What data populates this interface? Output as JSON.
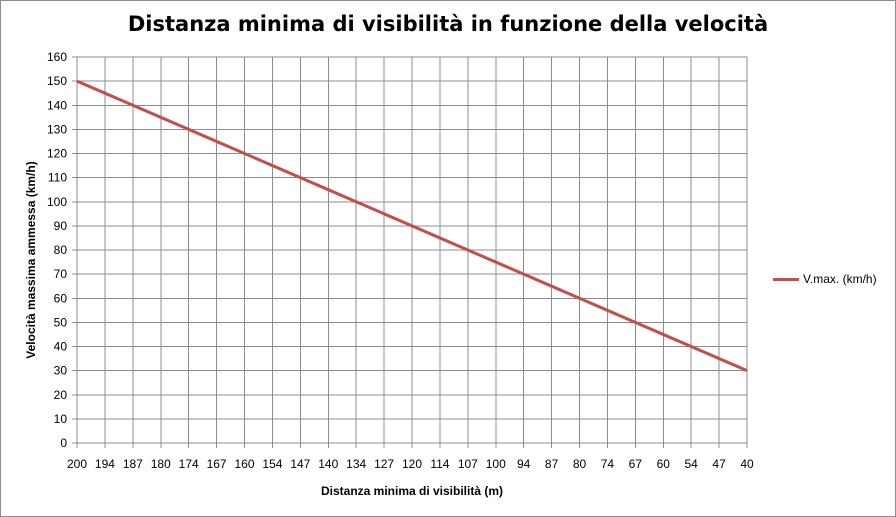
{
  "chart_data": {
    "type": "line",
    "title": "Distanza minima di visibilità in funzione della velocità",
    "xlabel": "Distanza minima di visibilità (m)",
    "ylabel": "Velocità massima ammessa (km/h)",
    "categories": [
      "200",
      "194",
      "187",
      "180",
      "174",
      "167",
      "160",
      "154",
      "147",
      "140",
      "134",
      "127",
      "120",
      "114",
      "107",
      "100",
      "94",
      "87",
      "80",
      "74",
      "67",
      "60",
      "54",
      "47",
      "40"
    ],
    "series": [
      {
        "name": "V.max. (km/h)",
        "color": "#C0504D",
        "values": [
          150,
          145,
          140,
          135,
          130,
          125,
          120,
          115,
          110,
          105,
          100,
          95,
          90,
          85,
          80,
          75,
          70,
          65,
          60,
          55,
          50,
          45,
          40,
          35,
          30
        ]
      }
    ],
    "ylim": [
      0,
      160
    ],
    "ytick_step": 10,
    "grid": true,
    "legend": "right"
  }
}
